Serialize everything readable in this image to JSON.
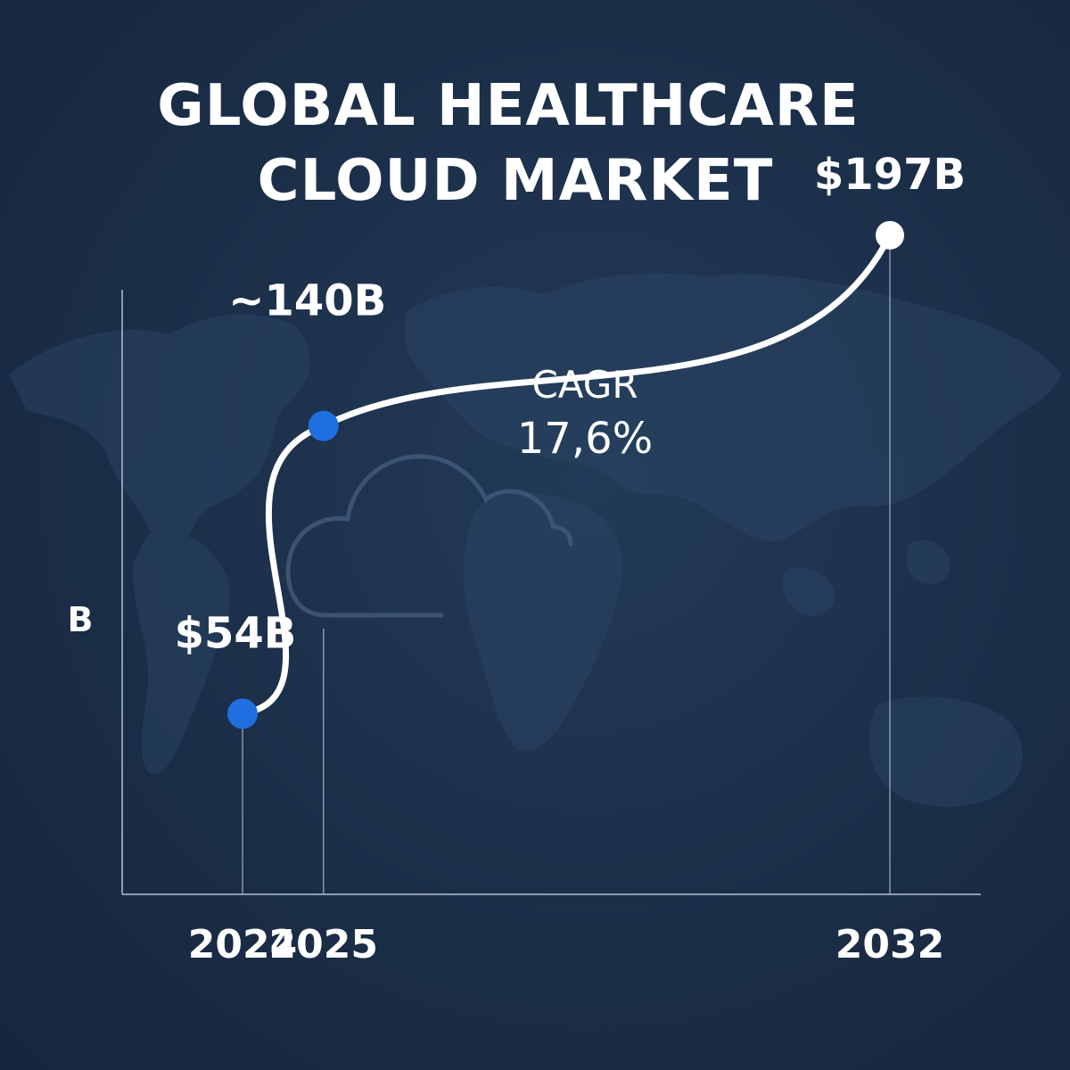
{
  "chart_data": {
    "type": "line",
    "title": "GLOBAL HEALTHCARE CLOUD MARKET",
    "title_lines": [
      "GLOBAL HEALTHCARE",
      "CLOUD MARKET"
    ],
    "ylabel": "B",
    "xlabel": "",
    "categories": [
      "2024",
      "2025",
      "2032"
    ],
    "values": [
      54,
      140,
      197
    ],
    "data_labels": [
      "$54B",
      "~140B",
      "$197B"
    ],
    "annotation": {
      "line1": "CAGR",
      "line2": "17,6%"
    },
    "ylim": [
      0,
      230
    ],
    "grid": false,
    "legend": "none"
  },
  "colors": {
    "background": "#1b2e48",
    "line": "#ffffff",
    "point_primary": "#1f6fe0",
    "point_last": "#ffffff",
    "axis": "#9fb0c4",
    "map": "#2a4463"
  },
  "background_icons": [
    "world-map",
    "cloud-icon"
  ]
}
